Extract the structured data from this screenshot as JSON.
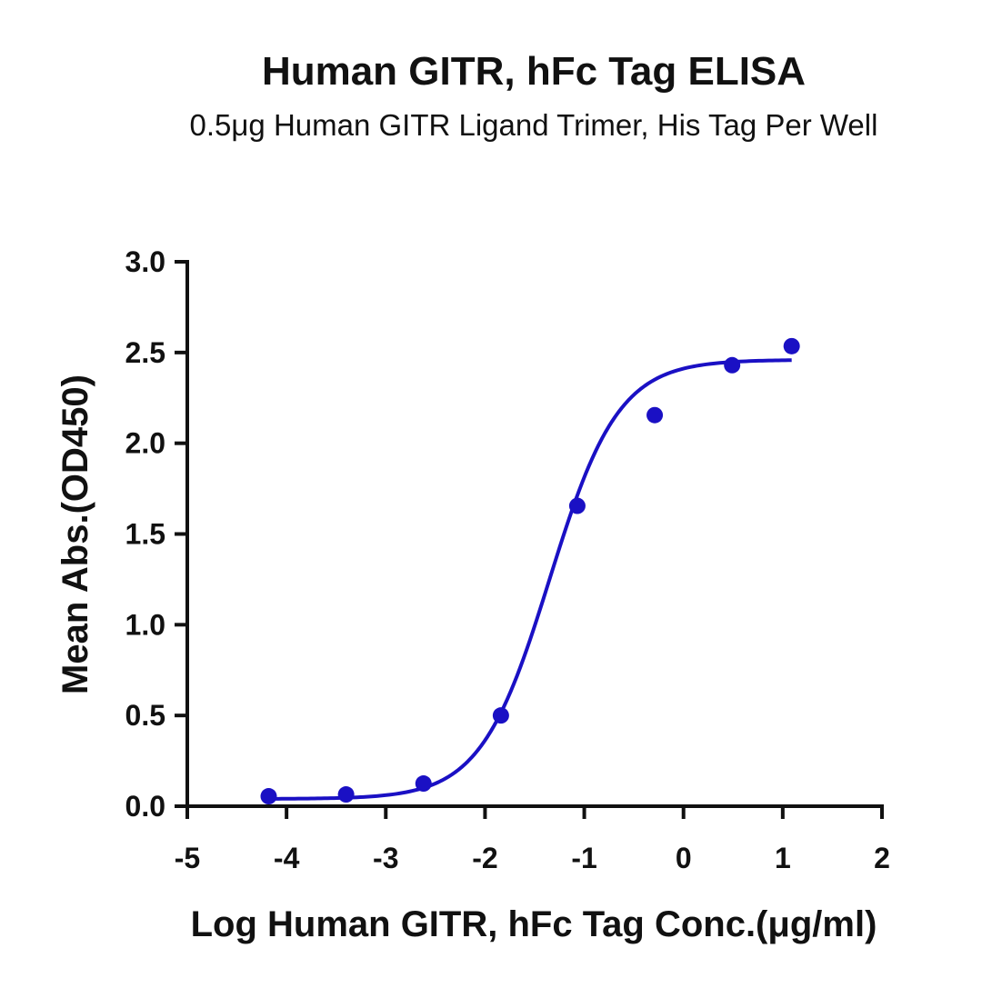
{
  "chart_data": {
    "type": "scatter",
    "title": "Human GITR, hFc Tag ELISA",
    "subtitle": "0.5μg Human GITR Ligand Trimer, His Tag Per Well",
    "xlabel": "Log Human GITR, hFc Tag Conc.(μg/ml)",
    "ylabel": "Mean Abs.(OD450)",
    "xlim": [
      -5,
      2
    ],
    "ylim": [
      0,
      3.0
    ],
    "x_ticks": [
      "-5",
      "-4",
      "-3",
      "-2",
      "-1",
      "0",
      "1",
      "2"
    ],
    "y_ticks": [
      "0.0",
      "0.5",
      "1.0",
      "1.5",
      "2.0",
      "2.5",
      "3.0"
    ],
    "grid": false,
    "legend": "none",
    "series": [
      {
        "color": "#1a10c4",
        "points": [
          {
            "x": -4.18,
            "y": 0.055
          },
          {
            "x": -3.4,
            "y": 0.065
          },
          {
            "x": -2.62,
            "y": 0.125
          },
          {
            "x": -1.84,
            "y": 0.5
          },
          {
            "x": -1.07,
            "y": 1.655
          },
          {
            "x": -0.29,
            "y": 2.155
          },
          {
            "x": 0.49,
            "y": 2.43
          },
          {
            "x": 1.09,
            "y": 2.535
          }
        ],
        "fit_curve": {
          "model": "four-parameter logistic",
          "bottom": 0.04,
          "top": 2.46,
          "log_ec50": -1.35,
          "hill_slope": 1.25,
          "x_range": [
            -4.18,
            1.09
          ]
        }
      }
    ]
  }
}
